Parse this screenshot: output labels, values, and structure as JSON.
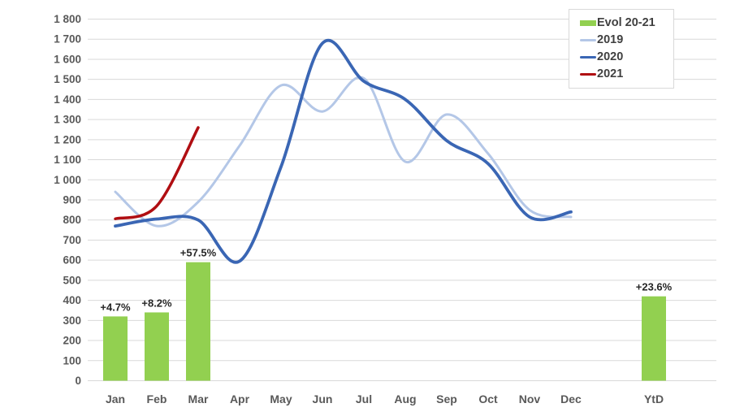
{
  "chart_data": {
    "type": "combo",
    "title": "",
    "categories": [
      "Jan",
      "Feb",
      "Mar",
      "Apr",
      "May",
      "Jun",
      "Jul",
      "Aug",
      "Sep",
      "Oct",
      "Nov",
      "Dec",
      "YtD"
    ],
    "y_axis": {
      "min": 0,
      "max": 1800,
      "step": 100,
      "tick_labels": [
        "0",
        "100",
        "200",
        "300",
        "400",
        "500",
        "600",
        "700",
        "800",
        "900",
        "1 000",
        "1 100",
        "1 200",
        "1 300",
        "1 400",
        "1 500",
        "1 600",
        "1 700",
        "1 800"
      ]
    },
    "grid": "horizontal",
    "legend_position": "top-right",
    "series": [
      {
        "name": "Evol 20-21",
        "type": "bar",
        "color": "#92d050",
        "points": [
          {
            "category": "Jan",
            "label": "+4.7%",
            "plotted_value": 320
          },
          {
            "category": "Feb",
            "label": "+8.2%",
            "plotted_value": 340
          },
          {
            "category": "Mar",
            "label": "+57.5%",
            "plotted_value": 590
          },
          {
            "category": "YtD",
            "label": "+23.6%",
            "plotted_value": 420
          }
        ]
      },
      {
        "name": "2019",
        "type": "line",
        "color": "#b4c7e7",
        "values": [
          940,
          770,
          890,
          1170,
          1470,
          1340,
          1505,
          1090,
          1325,
          1130,
          850,
          815
        ]
      },
      {
        "name": "2020",
        "type": "line",
        "color": "#3a66b4",
        "values": [
          770,
          805,
          800,
          595,
          1065,
          1680,
          1490,
          1400,
          1195,
          1080,
          815,
          840
        ]
      },
      {
        "name": "2021",
        "type": "line",
        "color": "#b00e12",
        "values": [
          806,
          870,
          1260
        ]
      }
    ]
  },
  "legend": {
    "items": [
      {
        "label": "Evol 20-21",
        "swatch": "bar",
        "color": "#92d050"
      },
      {
        "label": "2019",
        "swatch": "line",
        "color": "#b4c7e7"
      },
      {
        "label": "2020",
        "swatch": "line",
        "color": "#3a66b4"
      },
      {
        "label": "2021",
        "swatch": "line",
        "color": "#b00e12"
      }
    ]
  },
  "colors": {
    "background": "#ffffff",
    "grid": "#d9d9d9",
    "axis_text": "#595959",
    "data_label_text": "#262626"
  }
}
